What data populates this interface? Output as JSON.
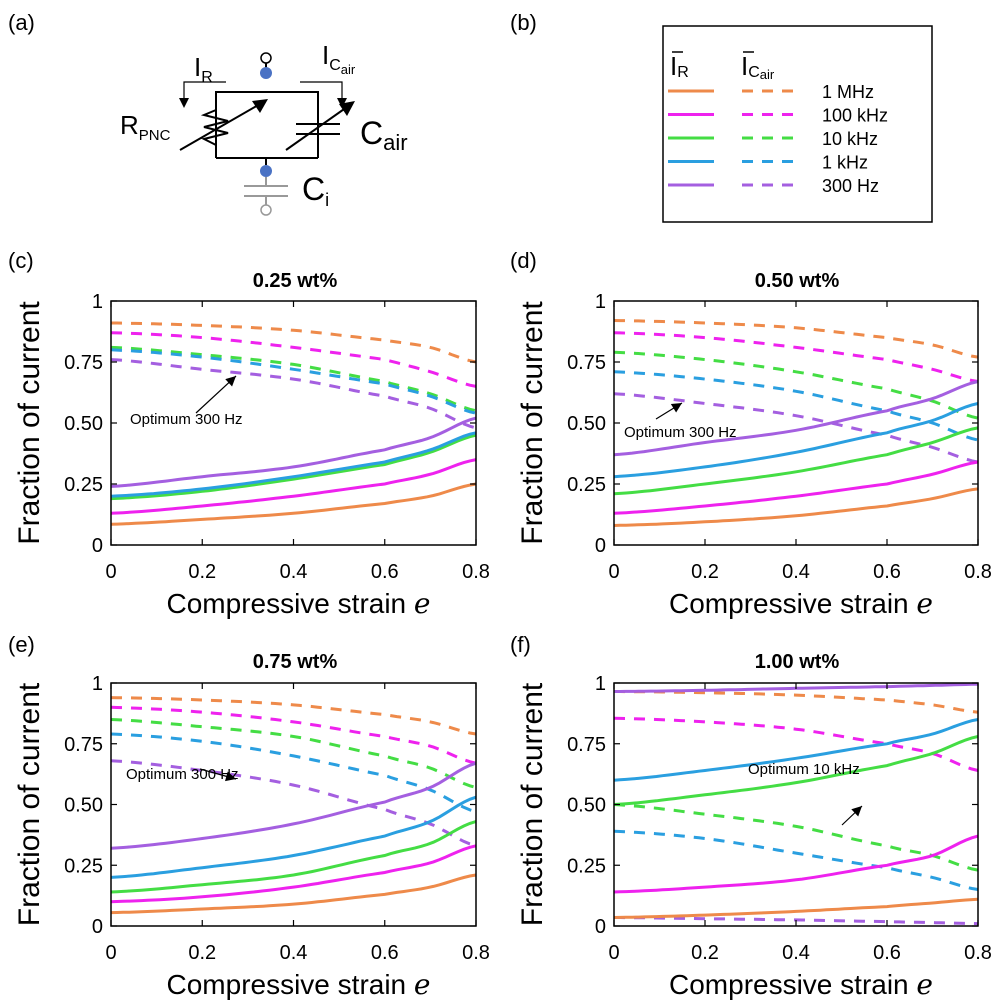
{
  "panel_labels": {
    "a": "(a)",
    "b": "(b)",
    "c": "(c)",
    "d": "(d)",
    "e": "(e)",
    "f": "(f)"
  },
  "circuit": {
    "i_r_main": "I",
    "i_r_sub": "R",
    "i_cair_main": "I",
    "i_cair_sub": "C",
    "i_cair_subsub": "air",
    "r_main": "R",
    "r_sub": "PNC",
    "c_air_main": "C",
    "c_air_sub": "air",
    "c_i_main": "C",
    "c_i_sub": "i"
  },
  "legend": {
    "header_r_main": "I",
    "header_r_sub": "R",
    "header_c_main": "I",
    "header_c_sub": "C",
    "header_c_subsub": "air",
    "entries": [
      {
        "label": "1 MHz",
        "color": "#EE8A4A"
      },
      {
        "label": "100 kHz",
        "color": "#EE22EE"
      },
      {
        "label": "10 kHz",
        "color": "#44DD44"
      },
      {
        "label": "1 kHz",
        "color": "#2A9FE0"
      },
      {
        "label": "300 Hz",
        "color": "#A45FE0"
      }
    ]
  },
  "axes_text": {
    "ylabel": "Fraction of current",
    "xlabel_text": "Compressive strain",
    "xlabel_var": "e"
  },
  "chart_data": [
    {
      "type": "line",
      "title": "0.25 wt%",
      "xlim": [
        0,
        0.8
      ],
      "ylim": [
        0,
        1
      ],
      "xticks": [
        "0",
        "0.2",
        "0.4",
        "0.6",
        "0.8"
      ],
      "yticks": [
        "0",
        "0.25",
        "0.50",
        "0.75",
        "1"
      ],
      "annotation": "Optimum 300 Hz",
      "series": [
        {
          "name": "1 MHz",
          "kind": "I_R",
          "x": [
            0,
            0.2,
            0.4,
            0.6,
            0.7,
            0.8
          ],
          "y": [
            0.085,
            0.105,
            0.13,
            0.17,
            0.2,
            0.25
          ]
        },
        {
          "name": "100 kHz",
          "kind": "I_R",
          "x": [
            0,
            0.2,
            0.4,
            0.6,
            0.7,
            0.8
          ],
          "y": [
            0.13,
            0.16,
            0.2,
            0.25,
            0.29,
            0.35
          ]
        },
        {
          "name": "10 kHz",
          "kind": "I_R",
          "x": [
            0,
            0.2,
            0.4,
            0.6,
            0.7,
            0.8
          ],
          "y": [
            0.19,
            0.22,
            0.27,
            0.33,
            0.38,
            0.45
          ]
        },
        {
          "name": "1 kHz",
          "kind": "I_R",
          "x": [
            0,
            0.2,
            0.4,
            0.6,
            0.7,
            0.8
          ],
          "y": [
            0.2,
            0.23,
            0.28,
            0.34,
            0.39,
            0.46
          ]
        },
        {
          "name": "300 Hz",
          "kind": "I_R",
          "x": [
            0,
            0.2,
            0.4,
            0.6,
            0.7,
            0.8
          ],
          "y": [
            0.24,
            0.28,
            0.32,
            0.39,
            0.44,
            0.52
          ]
        },
        {
          "name": "1 MHz",
          "kind": "I_Cair",
          "x": [
            0,
            0.2,
            0.4,
            0.6,
            0.7,
            0.8
          ],
          "y": [
            0.91,
            0.9,
            0.88,
            0.84,
            0.81,
            0.75
          ]
        },
        {
          "name": "100 kHz",
          "kind": "I_Cair",
          "x": [
            0,
            0.2,
            0.4,
            0.6,
            0.7,
            0.8
          ],
          "y": [
            0.87,
            0.85,
            0.81,
            0.76,
            0.71,
            0.65
          ]
        },
        {
          "name": "10 kHz",
          "kind": "I_Cair",
          "x": [
            0,
            0.2,
            0.4,
            0.6,
            0.7,
            0.8
          ],
          "y": [
            0.81,
            0.78,
            0.74,
            0.67,
            0.62,
            0.55
          ]
        },
        {
          "name": "1 kHz",
          "kind": "I_Cair",
          "x": [
            0,
            0.2,
            0.4,
            0.6,
            0.7,
            0.8
          ],
          "y": [
            0.8,
            0.77,
            0.72,
            0.66,
            0.61,
            0.54
          ]
        },
        {
          "name": "300 Hz",
          "kind": "I_Cair",
          "x": [
            0,
            0.2,
            0.4,
            0.6,
            0.7,
            0.8
          ],
          "y": [
            0.76,
            0.72,
            0.68,
            0.61,
            0.56,
            0.48
          ]
        }
      ]
    },
    {
      "type": "line",
      "title": "0.50 wt%",
      "xlim": [
        0,
        0.8
      ],
      "ylim": [
        0,
        1
      ],
      "xticks": [
        "0",
        "0.2",
        "0.4",
        "0.6",
        "0.8"
      ],
      "yticks": [
        "0",
        "0.25",
        "0.50",
        "0.75",
        "1"
      ],
      "annotation": "Optimum 300 Hz",
      "series": [
        {
          "name": "1 MHz",
          "kind": "I_R",
          "x": [
            0,
            0.2,
            0.4,
            0.6,
            0.7,
            0.8
          ],
          "y": [
            0.08,
            0.095,
            0.12,
            0.16,
            0.19,
            0.23
          ]
        },
        {
          "name": "100 kHz",
          "kind": "I_R",
          "x": [
            0,
            0.2,
            0.4,
            0.6,
            0.7,
            0.8
          ],
          "y": [
            0.13,
            0.16,
            0.2,
            0.25,
            0.29,
            0.34
          ]
        },
        {
          "name": "10 kHz",
          "kind": "I_R",
          "x": [
            0,
            0.2,
            0.4,
            0.6,
            0.7,
            0.8
          ],
          "y": [
            0.21,
            0.25,
            0.3,
            0.37,
            0.42,
            0.48
          ]
        },
        {
          "name": "1 kHz",
          "kind": "I_R",
          "x": [
            0,
            0.2,
            0.4,
            0.6,
            0.7,
            0.8
          ],
          "y": [
            0.28,
            0.32,
            0.38,
            0.46,
            0.51,
            0.58
          ]
        },
        {
          "name": "300 Hz",
          "kind": "I_R",
          "x": [
            0,
            0.2,
            0.4,
            0.6,
            0.7,
            0.8
          ],
          "y": [
            0.37,
            0.42,
            0.47,
            0.55,
            0.6,
            0.67
          ]
        },
        {
          "name": "1 MHz",
          "kind": "I_Cair",
          "x": [
            0,
            0.2,
            0.4,
            0.6,
            0.7,
            0.8
          ],
          "y": [
            0.92,
            0.91,
            0.89,
            0.85,
            0.82,
            0.77
          ]
        },
        {
          "name": "100 kHz",
          "kind": "I_Cair",
          "x": [
            0,
            0.2,
            0.4,
            0.6,
            0.7,
            0.8
          ],
          "y": [
            0.87,
            0.85,
            0.81,
            0.76,
            0.72,
            0.67
          ]
        },
        {
          "name": "10 kHz",
          "kind": "I_Cair",
          "x": [
            0,
            0.2,
            0.4,
            0.6,
            0.7,
            0.8
          ],
          "y": [
            0.79,
            0.76,
            0.71,
            0.64,
            0.59,
            0.52
          ]
        },
        {
          "name": "1 kHz",
          "kind": "I_Cair",
          "x": [
            0,
            0.2,
            0.4,
            0.6,
            0.7,
            0.8
          ],
          "y": [
            0.71,
            0.68,
            0.63,
            0.55,
            0.5,
            0.43
          ]
        },
        {
          "name": "300 Hz",
          "kind": "I_Cair",
          "x": [
            0,
            0.2,
            0.4,
            0.6,
            0.7,
            0.8
          ],
          "y": [
            0.62,
            0.58,
            0.53,
            0.45,
            0.4,
            0.34
          ]
        }
      ]
    },
    {
      "type": "line",
      "title": "0.75 wt%",
      "xlim": [
        0,
        0.8
      ],
      "ylim": [
        0,
        1
      ],
      "xticks": [
        "0",
        "0.2",
        "0.4",
        "0.6",
        "0.8"
      ],
      "yticks": [
        "0",
        "0.25",
        "0.50",
        "0.75",
        "1"
      ],
      "annotation": "Optimum 300 Hz",
      "series": [
        {
          "name": "1 MHz",
          "kind": "I_R",
          "x": [
            0,
            0.2,
            0.4,
            0.6,
            0.7,
            0.8
          ],
          "y": [
            0.055,
            0.07,
            0.09,
            0.13,
            0.16,
            0.21
          ]
        },
        {
          "name": "100 kHz",
          "kind": "I_R",
          "x": [
            0,
            0.2,
            0.4,
            0.6,
            0.7,
            0.8
          ],
          "y": [
            0.1,
            0.12,
            0.16,
            0.22,
            0.26,
            0.33
          ]
        },
        {
          "name": "10 kHz",
          "kind": "I_R",
          "x": [
            0,
            0.2,
            0.4,
            0.6,
            0.7,
            0.8
          ],
          "y": [
            0.14,
            0.17,
            0.21,
            0.29,
            0.34,
            0.43
          ]
        },
        {
          "name": "1 kHz",
          "kind": "I_R",
          "x": [
            0,
            0.2,
            0.4,
            0.6,
            0.7,
            0.8
          ],
          "y": [
            0.2,
            0.24,
            0.29,
            0.37,
            0.43,
            0.53
          ]
        },
        {
          "name": "300 Hz",
          "kind": "I_R",
          "x": [
            0,
            0.2,
            0.4,
            0.6,
            0.7,
            0.8
          ],
          "y": [
            0.32,
            0.36,
            0.42,
            0.51,
            0.57,
            0.67
          ]
        },
        {
          "name": "1 MHz",
          "kind": "I_Cair",
          "x": [
            0,
            0.2,
            0.4,
            0.6,
            0.7,
            0.8
          ],
          "y": [
            0.94,
            0.93,
            0.91,
            0.87,
            0.84,
            0.79
          ]
        },
        {
          "name": "100 kHz",
          "kind": "I_Cair",
          "x": [
            0,
            0.2,
            0.4,
            0.6,
            0.7,
            0.8
          ],
          "y": [
            0.9,
            0.88,
            0.84,
            0.78,
            0.74,
            0.67
          ]
        },
        {
          "name": "10 kHz",
          "kind": "I_Cair",
          "x": [
            0,
            0.2,
            0.4,
            0.6,
            0.7,
            0.8
          ],
          "y": [
            0.85,
            0.82,
            0.78,
            0.7,
            0.65,
            0.57
          ]
        },
        {
          "name": "1 kHz",
          "kind": "I_Cair",
          "x": [
            0,
            0.2,
            0.4,
            0.6,
            0.7,
            0.8
          ],
          "y": [
            0.79,
            0.76,
            0.7,
            0.62,
            0.56,
            0.47
          ]
        },
        {
          "name": "300 Hz",
          "kind": "I_Cair",
          "x": [
            0,
            0.2,
            0.4,
            0.6,
            0.7,
            0.8
          ],
          "y": [
            0.68,
            0.64,
            0.58,
            0.48,
            0.42,
            0.33
          ]
        }
      ]
    },
    {
      "type": "line",
      "title": "1.00 wt%",
      "xlim": [
        0,
        0.8
      ],
      "ylim": [
        0,
        1
      ],
      "xticks": [
        "0",
        "0.2",
        "0.4",
        "0.6",
        "0.8"
      ],
      "yticks": [
        "0",
        "0.25",
        "0.50",
        "0.75",
        "1"
      ],
      "annotation": "Optimum 10 kHz",
      "series": [
        {
          "name": "1 MHz",
          "kind": "I_R",
          "x": [
            0,
            0.2,
            0.4,
            0.6,
            0.7,
            0.8
          ],
          "y": [
            0.035,
            0.045,
            0.06,
            0.08,
            0.095,
            0.11
          ]
        },
        {
          "name": "100 kHz",
          "kind": "I_R",
          "x": [
            0,
            0.2,
            0.4,
            0.6,
            0.7,
            0.8
          ],
          "y": [
            0.14,
            0.16,
            0.19,
            0.25,
            0.29,
            0.37
          ]
        },
        {
          "name": "10 kHz",
          "kind": "I_R",
          "x": [
            0,
            0.2,
            0.4,
            0.6,
            0.7,
            0.8
          ],
          "y": [
            0.5,
            0.54,
            0.59,
            0.66,
            0.71,
            0.78
          ]
        },
        {
          "name": "1 kHz",
          "kind": "I_R",
          "x": [
            0,
            0.2,
            0.4,
            0.6,
            0.7,
            0.8
          ],
          "y": [
            0.6,
            0.64,
            0.69,
            0.75,
            0.79,
            0.85
          ]
        },
        {
          "name": "300 Hz",
          "kind": "I_R",
          "x": [
            0,
            0.2,
            0.4,
            0.6,
            0.7,
            0.8
          ],
          "y": [
            0.965,
            0.97,
            0.978,
            0.985,
            0.99,
            0.995
          ]
        },
        {
          "name": "1 MHz",
          "kind": "I_Cair",
          "x": [
            0,
            0.2,
            0.4,
            0.6,
            0.7,
            0.8
          ],
          "y": [
            0.965,
            0.96,
            0.95,
            0.93,
            0.91,
            0.88
          ]
        },
        {
          "name": "100 kHz",
          "kind": "I_Cair",
          "x": [
            0,
            0.2,
            0.4,
            0.6,
            0.7,
            0.8
          ],
          "y": [
            0.855,
            0.84,
            0.81,
            0.75,
            0.71,
            0.64
          ]
        },
        {
          "name": "10 kHz",
          "kind": "I_Cair",
          "x": [
            0,
            0.2,
            0.4,
            0.6,
            0.7,
            0.8
          ],
          "y": [
            0.5,
            0.46,
            0.41,
            0.33,
            0.29,
            0.23
          ]
        },
        {
          "name": "1 kHz",
          "kind": "I_Cair",
          "x": [
            0,
            0.2,
            0.4,
            0.6,
            0.7,
            0.8
          ],
          "y": [
            0.39,
            0.36,
            0.3,
            0.24,
            0.2,
            0.15
          ]
        },
        {
          "name": "300 Hz",
          "kind": "I_Cair",
          "x": [
            0,
            0.2,
            0.4,
            0.6,
            0.7,
            0.8
          ],
          "y": [
            0.035,
            0.03,
            0.025,
            0.018,
            0.014,
            0.01
          ]
        }
      ]
    }
  ]
}
